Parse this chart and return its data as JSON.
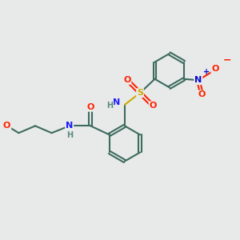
{
  "bg_color": "#e8eaea",
  "bond_color": "#3d6b5e",
  "bond_width": 1.5,
  "atom_colors": {
    "C": "#3d6b5e",
    "N": "#1a1aff",
    "O": "#ff2200",
    "S": "#ccaa00",
    "H": "#5a8a7e"
  },
  "font_size": 8,
  "fig_size": [
    3.0,
    3.0
  ],
  "dpi": 100
}
